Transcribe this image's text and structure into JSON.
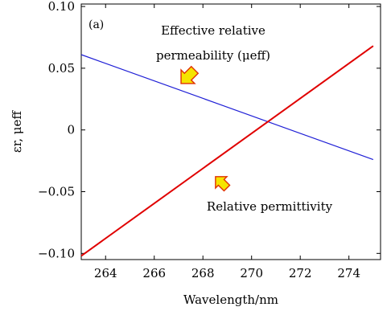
{
  "chart_data": {
    "type": "line",
    "panel_label": "(a)",
    "xlabel": "Wavelength/nm",
    "ylabel": "εr, μeff",
    "xlim": [
      263,
      275.3
    ],
    "ylim": [
      -0.105,
      0.102
    ],
    "x_ticks": [
      264,
      266,
      268,
      270,
      272,
      274
    ],
    "y_ticks": [
      -0.1,
      -0.05,
      0,
      0.05,
      0.1
    ],
    "y_tick_labels": [
      "−0.10",
      "−0.05",
      "0",
      "0.05",
      "0.10"
    ],
    "grid": false,
    "series": [
      {
        "name": "Effective relative permeability (μeff)",
        "color": "#1f1fd6",
        "x": [
          263,
          275
        ],
        "y": [
          0.061,
          -0.024
        ]
      },
      {
        "name": "Relative permittivity",
        "color": "#e00000",
        "x": [
          263,
          275
        ],
        "y": [
          -0.102,
          0.068
        ]
      }
    ],
    "annotations": [
      {
        "line1": "Effective relative",
        "line2": "permeability (μeff)",
        "arrow_to": [
          267.1,
          0.045
        ]
      },
      {
        "line1": "Relative permittivity",
        "arrow_to": [
          268.2,
          -0.037
        ]
      }
    ]
  }
}
